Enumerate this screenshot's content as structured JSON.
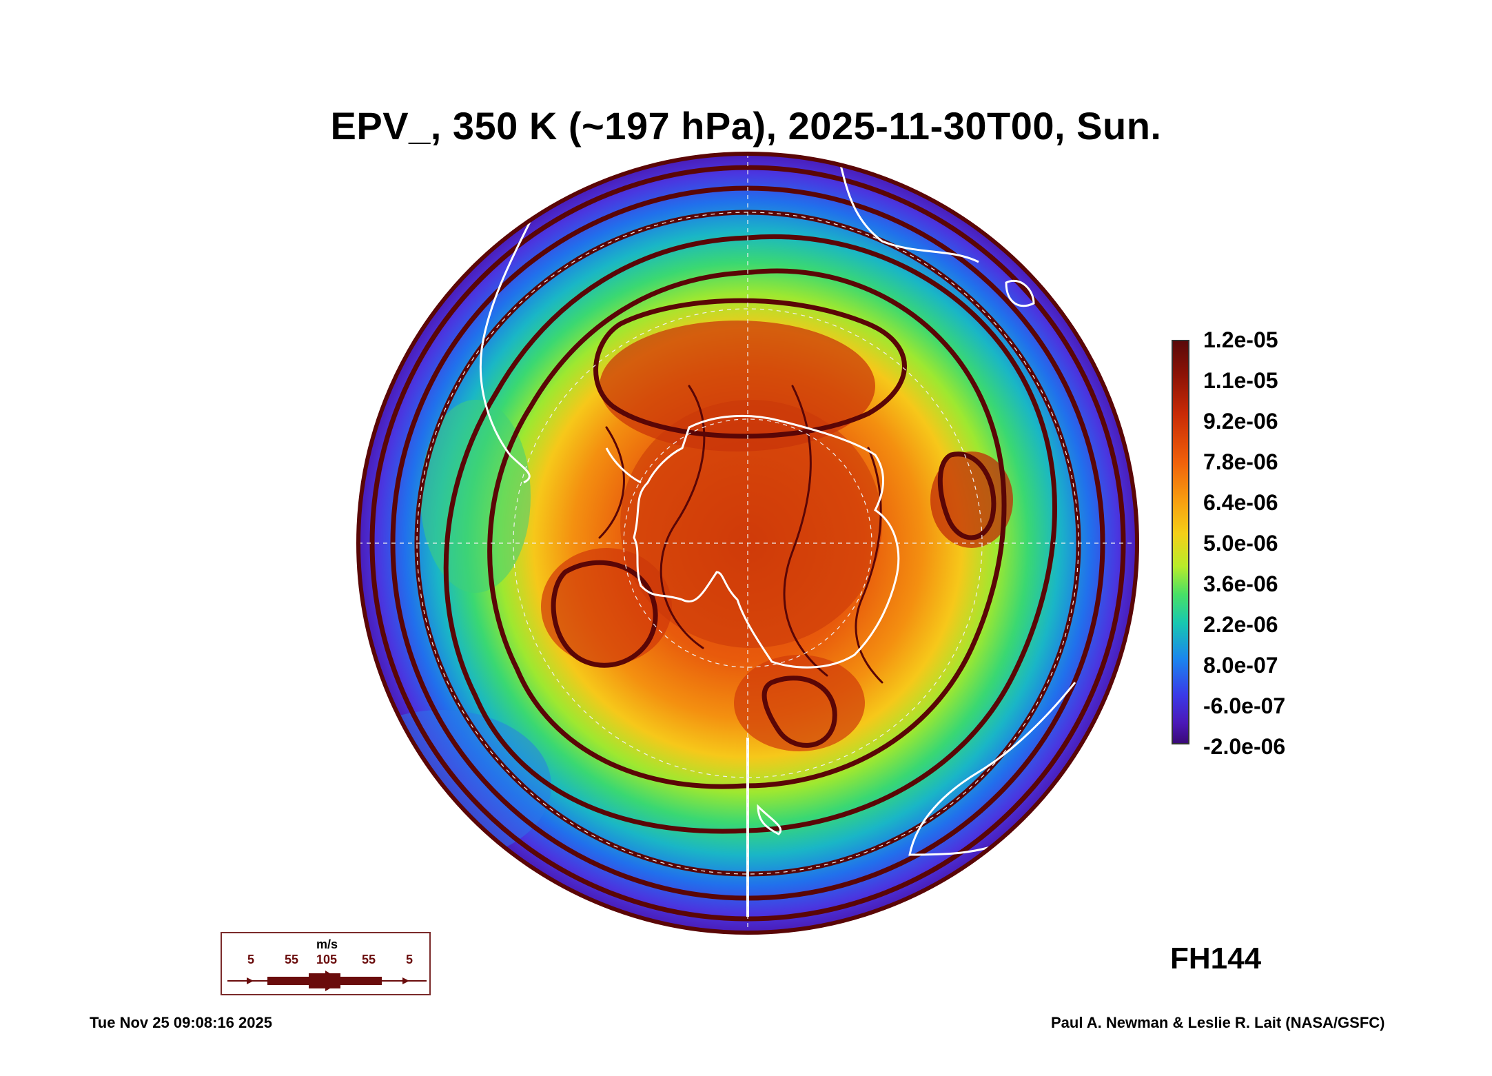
{
  "title": "EPV_, 350 K (~197 hPa), 2025-11-30T00, Sun.",
  "colorbar": {
    "labels": [
      "1.2e-05",
      "1.1e-05",
      "9.2e-06",
      "7.8e-06",
      "6.4e-06",
      "5.0e-06",
      "3.6e-06",
      "2.2e-06",
      "8.0e-07",
      "-6.0e-07",
      "-2.0e-06"
    ]
  },
  "forecast_hour": "FH144",
  "wind_legend": {
    "unit": "m/s",
    "speeds": [
      "5",
      "55",
      "105",
      "55",
      "5"
    ]
  },
  "footer": {
    "timestamp": "Tue Nov 25 09:08:16 2025",
    "credit": "Paul A. Newman & Leslie R. Lait (NASA/GSFC)"
  },
  "colors": {
    "streamline": "#5a0606",
    "coast": "#ffffff",
    "outer": "#4b2ad8"
  }
}
